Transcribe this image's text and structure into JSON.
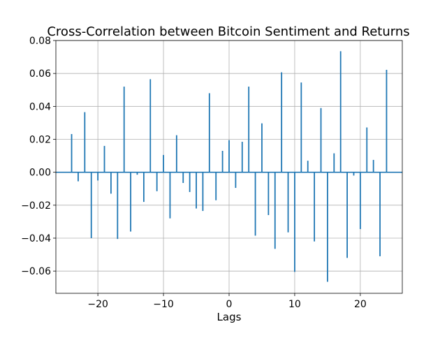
{
  "chart_data": {
    "type": "bar",
    "title": "Cross-Correlation between Bitcoin Sentiment and Returns",
    "xlabel": "Lags",
    "ylabel": "",
    "xlim": [
      -26.4,
      26.4
    ],
    "ylim": [
      -0.0735,
      0.08
    ],
    "x_ticks": [
      -20,
      -10,
      0,
      10,
      20
    ],
    "x_tick_labels": [
      "−20",
      "−10",
      "0",
      "10",
      "20"
    ],
    "y_ticks": [
      -0.06,
      -0.04,
      -0.02,
      0.0,
      0.02,
      0.04,
      0.06,
      0.08
    ],
    "y_tick_labels": [
      "−0.06",
      "−0.04",
      "−0.02",
      "0.00",
      "0.02",
      "0.04",
      "0.06",
      "0.08"
    ],
    "grid": true,
    "baseline": 0,
    "colors": {
      "series": "#1f77b4",
      "grid": "#b0b0b0",
      "axes": "#000000"
    },
    "x": [
      -24,
      -23,
      -22,
      -21,
      -20,
      -19,
      -18,
      -17,
      -16,
      -15,
      -14,
      -13,
      -12,
      -11,
      -10,
      -9,
      -8,
      -7,
      -6,
      -5,
      -4,
      -3,
      -2,
      -1,
      0,
      1,
      2,
      3,
      4,
      5,
      6,
      7,
      8,
      9,
      10,
      11,
      12,
      13,
      14,
      15,
      16,
      17,
      18,
      19,
      20,
      21,
      22,
      23,
      24
    ],
    "values": [
      0.0232,
      -0.0055,
      0.0365,
      -0.04,
      -0.005,
      0.016,
      -0.013,
      -0.0405,
      0.052,
      -0.036,
      -0.0015,
      -0.018,
      0.0565,
      -0.0115,
      0.0105,
      -0.028,
      0.0225,
      -0.0065,
      -0.012,
      -0.022,
      -0.0235,
      0.048,
      -0.017,
      0.013,
      0.0195,
      -0.0095,
      0.0185,
      0.052,
      -0.0385,
      0.0297,
      -0.026,
      -0.0465,
      0.0607,
      -0.0365,
      -0.0605,
      0.0545,
      0.007,
      -0.042,
      0.039,
      -0.0665,
      0.0115,
      0.0735,
      -0.052,
      -0.002,
      -0.0345,
      0.0272,
      0.0075,
      -0.051,
      0.0622
    ]
  }
}
